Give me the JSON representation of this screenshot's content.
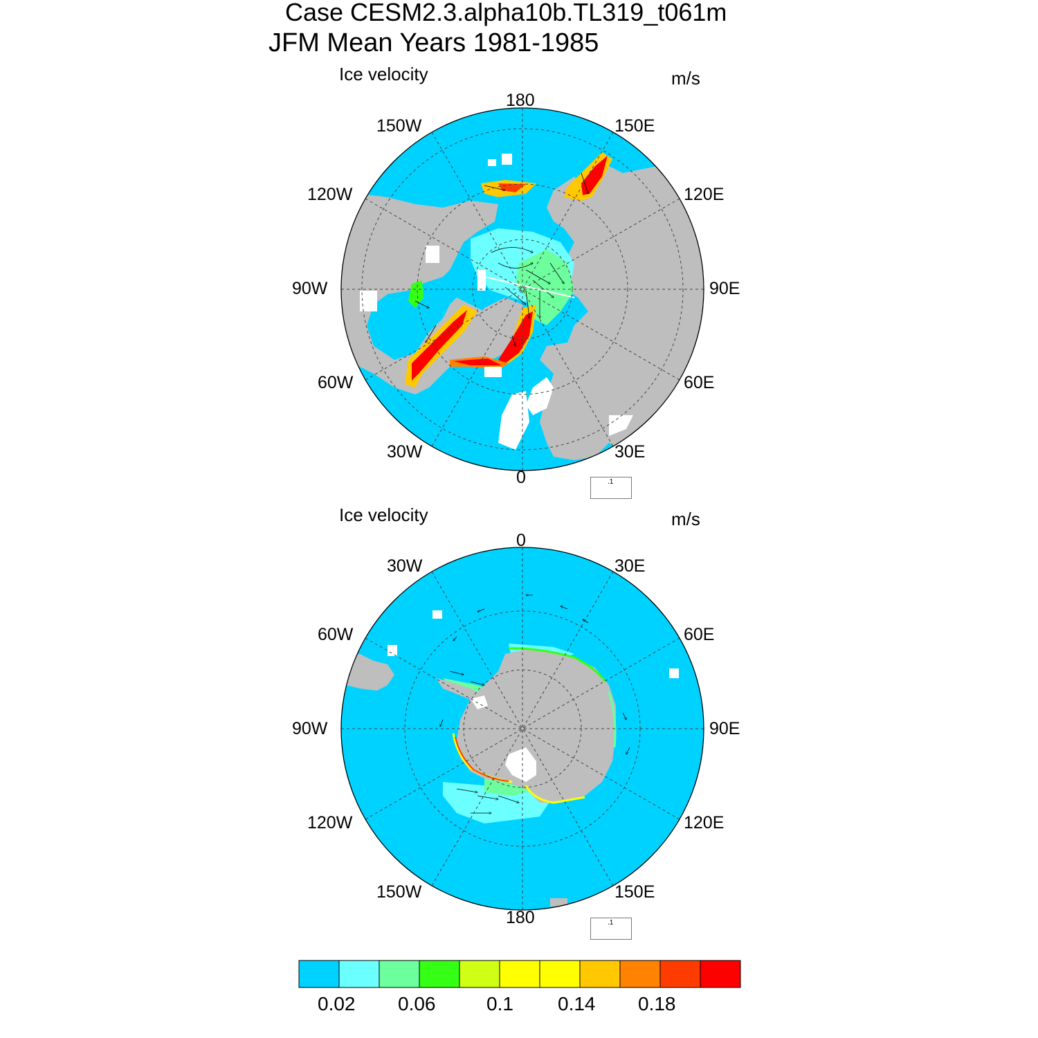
{
  "title": {
    "line1": "Case CESM2.3.alpha10b.TL319_t061m",
    "line2": "JFM Mean   Years 1981-1985"
  },
  "panels": [
    {
      "hemisphere": "north",
      "label": "Ice velocity",
      "units": "m/s",
      "lon_labels": [
        "180",
        "150E",
        "120E",
        "90E",
        "60E",
        "30E",
        "0",
        "30W",
        "60W",
        "90W",
        "120W",
        "150W"
      ],
      "ref_vector_label": ".1"
    },
    {
      "hemisphere": "south",
      "label": "Ice velocity",
      "units": "m/s",
      "lon_labels": [
        "0",
        "30E",
        "60E",
        "90E",
        "120E",
        "150E",
        "180",
        "150W",
        "120W",
        "90W",
        "60W",
        "30W"
      ],
      "ref_vector_label": ".1"
    }
  ],
  "colorbar": {
    "colors": [
      "#00d2ff",
      "#6bffff",
      "#6dff9e",
      "#35ff14",
      "#cfff14",
      "#ffff00",
      "#ffff00",
      "#ffc800",
      "#ff8200",
      "#ff3c00",
      "#ff0000"
    ],
    "labels": [
      "0.02",
      "0.06",
      "0.1",
      "0.14",
      "0.18"
    ]
  },
  "colors": {
    "ocean_ice": "#00d2ff",
    "land": "#bebebe",
    "no_ice": "#ffffff"
  }
}
